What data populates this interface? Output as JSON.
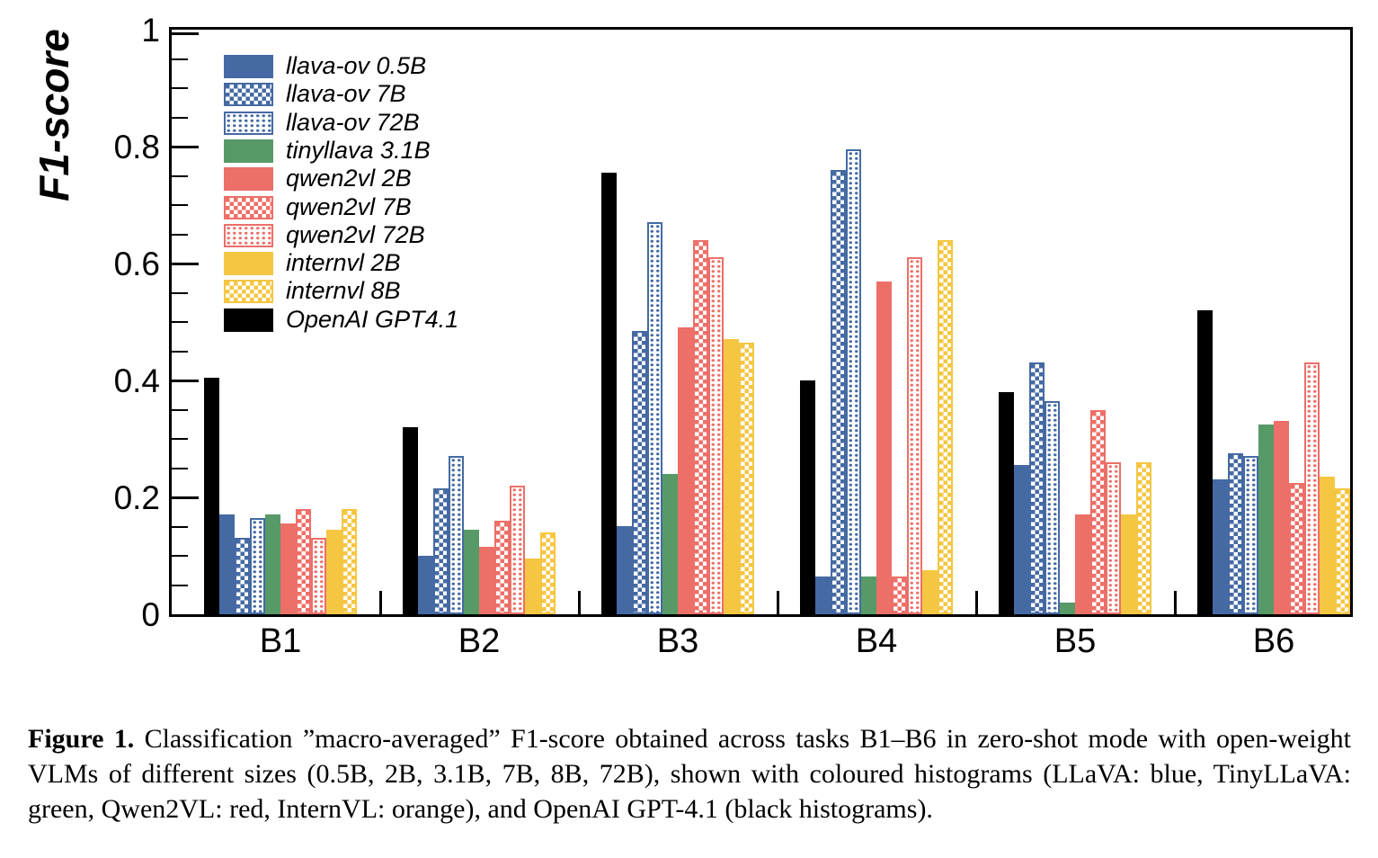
{
  "figure": {
    "y_axis_label": "F1-score",
    "x_tick_labels": [
      "B1",
      "B2",
      "B3",
      "B4",
      "B5",
      "B6"
    ],
    "y_tick_labels": [
      "1",
      "0.8",
      "0.6",
      "0.4",
      "0.2",
      "0"
    ]
  },
  "chart_data": {
    "type": "bar",
    "title": "",
    "xlabel": "",
    "ylabel": "F1-score",
    "categories": [
      "B1",
      "B2",
      "B3",
      "B4",
      "B5",
      "B6"
    ],
    "ylim": [
      0,
      1
    ],
    "y_major_ticks": [
      0,
      0.2,
      0.4,
      0.6,
      0.8,
      1
    ],
    "y_minor_step": 0.05,
    "grid": false,
    "legend_position": "top-left",
    "bar_plot_order": [
      "OpenAI GPT4.1",
      "llava-ov 0.5B",
      "llava-ov 7B",
      "llava-ov 72B",
      "tinyllava 3.1B",
      "qwen2vl 2B",
      "qwen2vl 7B",
      "qwen2vl 72B",
      "internvl 2B",
      "internvl 8B"
    ],
    "series": [
      {
        "name": "llava-ov 0.5B",
        "color": "#456AA3",
        "pattern": "solid",
        "values": [
          0.17,
          0.1,
          0.15,
          0.065,
          0.255,
          0.23
        ]
      },
      {
        "name": "llava-ov 7B",
        "color": "#456AA3",
        "pattern": "checker",
        "values": [
          0.13,
          0.215,
          0.485,
          0.76,
          0.43,
          0.275
        ]
      },
      {
        "name": "llava-ov 72B",
        "color": "#456AA3",
        "pattern": "dots",
        "values": [
          0.165,
          0.27,
          0.67,
          0.795,
          0.365,
          0.27
        ]
      },
      {
        "name": "tinyllava 3.1B",
        "color": "#579A68",
        "pattern": "solid",
        "values": [
          0.17,
          0.145,
          0.24,
          0.065,
          0.02,
          0.325
        ]
      },
      {
        "name": "qwen2vl 2B",
        "color": "#EC6F68",
        "pattern": "solid",
        "values": [
          0.155,
          0.115,
          0.49,
          0.57,
          0.17,
          0.33
        ]
      },
      {
        "name": "qwen2vl 7B",
        "color": "#EC6F68",
        "pattern": "checker",
        "values": [
          0.18,
          0.16,
          0.64,
          0.065,
          0.35,
          0.225
        ]
      },
      {
        "name": "qwen2vl 72B",
        "color": "#EC6F68",
        "pattern": "dots",
        "values": [
          0.13,
          0.22,
          0.61,
          0.61,
          0.26,
          0.43
        ]
      },
      {
        "name": "internvl 2B",
        "color": "#F5C642",
        "pattern": "solid",
        "values": [
          0.145,
          0.095,
          0.47,
          0.075,
          0.17,
          0.235
        ]
      },
      {
        "name": "internvl 8B",
        "color": "#F5C642",
        "pattern": "checker",
        "values": [
          0.18,
          0.14,
          0.465,
          0.64,
          0.26,
          0.215
        ]
      },
      {
        "name": "OpenAI GPT4.1",
        "color": "#000000",
        "pattern": "solid",
        "values": [
          0.405,
          0.32,
          0.755,
          0.4,
          0.38,
          0.52
        ]
      }
    ]
  },
  "caption": {
    "label": "Figure 1.",
    "text": "Classification ”macro-averaged” F1-score obtained across tasks B1–B6 in zero-shot mode with open-weight VLMs of different sizes (0.5B, 2B, 3.1B, 7B, 8B, 72B), shown with coloured histograms (LLaVA: blue, TinyLLaVA: green, Qwen2VL: red, InternVL: orange), and OpenAI GPT-4.1 (black histograms)."
  }
}
